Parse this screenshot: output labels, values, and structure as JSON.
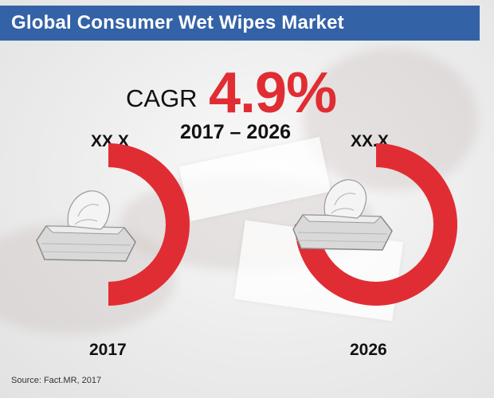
{
  "title": "Global Consumer Wet Wipes Market",
  "cagr": {
    "label": "CAGR",
    "value": "4.9%",
    "period": "2017 – 2026"
  },
  "source": "Source: Fact.MR, 2017",
  "colors": {
    "accent": "#e02d33",
    "title_bar": "#3462a7",
    "text": "#111111"
  },
  "chart_data": {
    "type": "donut",
    "title": "Global Consumer Wet Wipes Market",
    "categories": [
      "2017",
      "2026"
    ],
    "values_label": [
      "XX.X",
      "XX.X"
    ],
    "fill_fraction": [
      0.5,
      0.75
    ],
    "annotation": "CAGR 4.9% 2017 – 2026"
  }
}
